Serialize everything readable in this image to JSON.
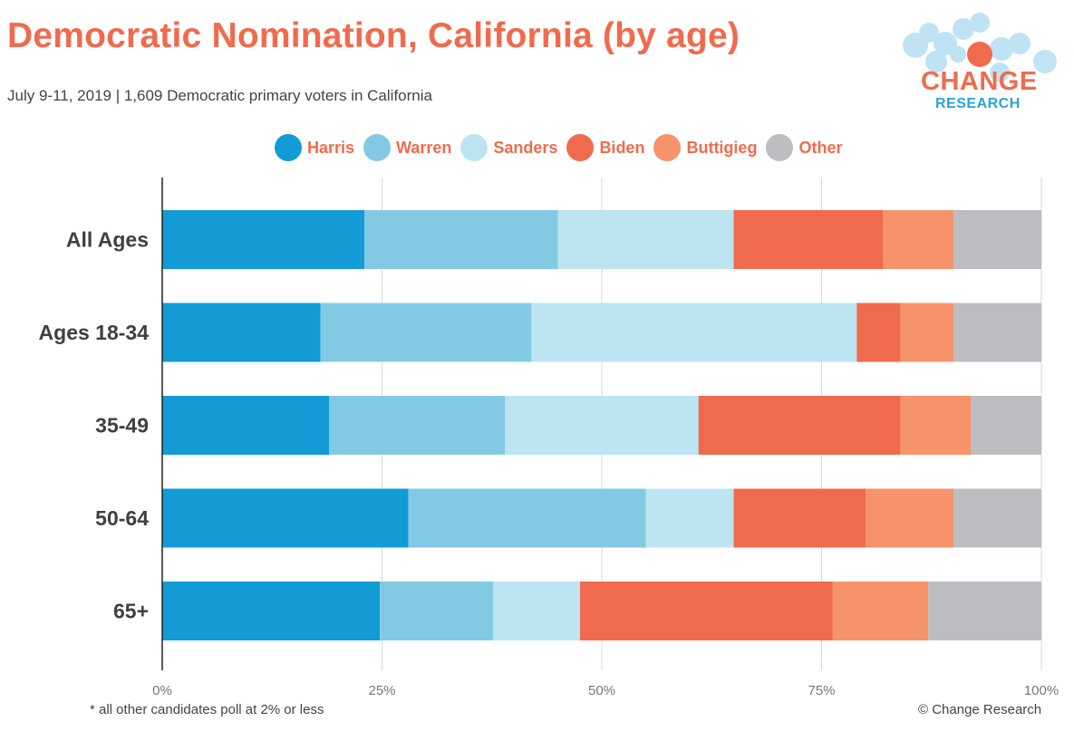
{
  "title": "Democratic Nomination, California (by age)",
  "subtitle": "July 9-11, 2019  | 1,609 Democratic primary voters in California",
  "logo": {
    "line1": "CHANGE",
    "line2": "RESEARCH"
  },
  "footnote": "* all other candidates poll at 2% or less",
  "copyright": "© Change Research",
  "colors": {
    "title": "#f06b4d",
    "Harris": "#129bd4",
    "Warren": "#82cae4",
    "Sanders": "#bde4f1",
    "Biden": "#f06b4d",
    "Buttigieg": "#f7936b",
    "Other": "#bcbdc0"
  },
  "chart_data": {
    "type": "bar",
    "orientation": "horizontal",
    "stacked": true,
    "categories": [
      "All Ages",
      "Ages 18-34",
      "35-49",
      "50-64",
      "65+"
    ],
    "series": [
      {
        "name": "Harris",
        "values": [
          23,
          18,
          19,
          28,
          25
        ]
      },
      {
        "name": "Warren",
        "values": [
          22,
          24,
          20,
          27,
          13
        ]
      },
      {
        "name": "Sanders",
        "values": [
          20,
          37,
          22,
          10,
          10
        ]
      },
      {
        "name": "Biden",
        "values": [
          17,
          5,
          23,
          15,
          29
        ]
      },
      {
        "name": "Buttigieg",
        "values": [
          8,
          6,
          8,
          10,
          11
        ]
      },
      {
        "name": "Other",
        "values": [
          10,
          10,
          8,
          10,
          13
        ]
      }
    ],
    "xticks": [
      "0%",
      "25%",
      "50%",
      "75%",
      "100%"
    ],
    "xlim": [
      0,
      100
    ],
    "grid": true,
    "legend": "top"
  }
}
